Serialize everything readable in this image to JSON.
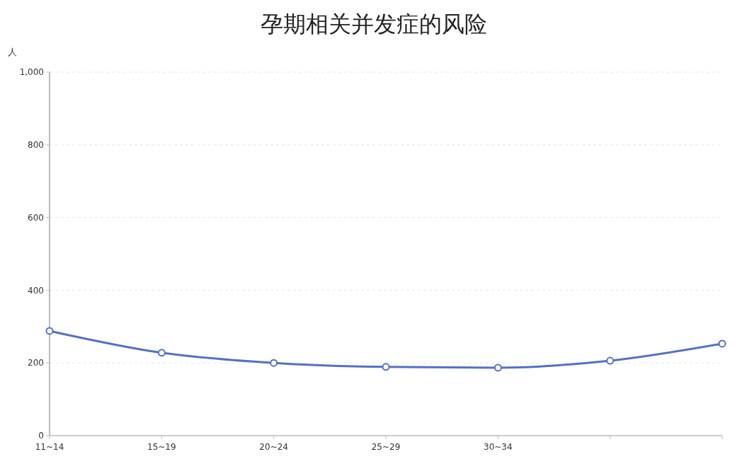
{
  "chart_data": {
    "type": "line",
    "title": "孕期相关并发症的风险",
    "ylabel": "人",
    "categories": [
      "11~14",
      "15~19",
      "20~24",
      "25~29",
      "30~34",
      null,
      null
    ],
    "series": [
      {
        "color": "#5470c6",
        "values": [
          288,
          228,
          200,
          189,
          187,
          206,
          253
        ]
      }
    ],
    "ylim": [
      0,
      1000
    ],
    "yticks": [
      0,
      200,
      400,
      600,
      800,
      {
        "value": 1000,
        "label": "1,000"
      }
    ],
    "grid": "y",
    "marker": "circle"
  }
}
